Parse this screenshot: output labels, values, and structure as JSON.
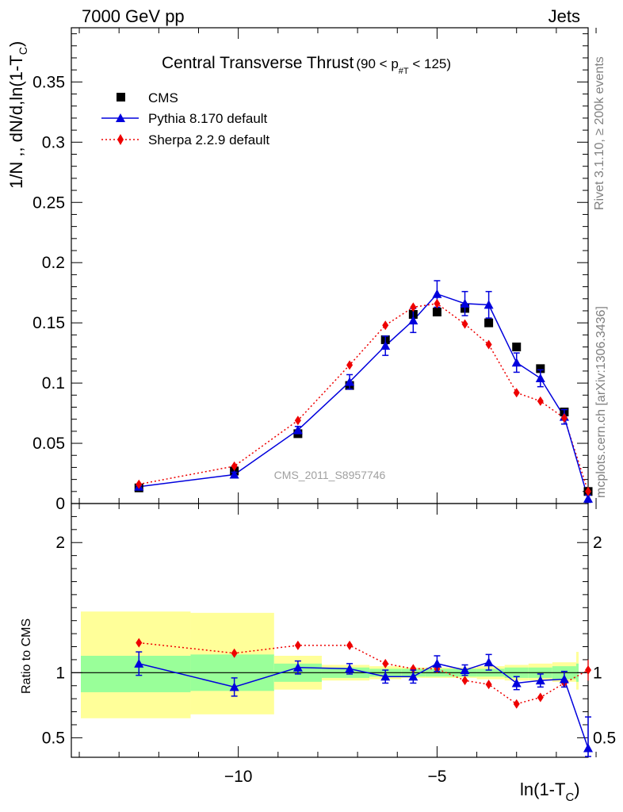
{
  "header": {
    "left": "7000 GeV pp",
    "right": "Jets"
  },
  "side_labels": {
    "top": "Rivet 3.1.10, ≥ 200k events",
    "bottom": "mcplots.cern.ch [arXiv:1306.3436]"
  },
  "watermark": "CMS_2011_S8957746",
  "chart_data": [
    {
      "type": "scatter",
      "title": "Central Transverse Thrust",
      "title_cut": "(90 < p",
      "title_cut_sub": "#T",
      "title_cut_end": " < 125)",
      "xlabel": "ln(1-T",
      "xlabel_sub": "C",
      "xlabel_end": ")",
      "ylabel": "1/N ,, dN/d,ln(1-T",
      "ylabel_sub": "C",
      "ylabel_end": ")",
      "xlim": [
        -14.2,
        -1.2
      ],
      "ylim": [
        0,
        0.395
      ],
      "xticks": [
        -10,
        -5
      ],
      "xtick_labels": [
        "−10",
        "−5"
      ],
      "yticks": [
        0,
        0.05,
        0.1,
        0.15,
        0.2,
        0.25,
        0.3,
        0.35
      ],
      "ytick_labels": [
        "0",
        "0.05",
        "0.1",
        "0.15",
        "0.2",
        "0.25",
        "0.3",
        "0.35"
      ],
      "legend_position": "top-left",
      "series": [
        {
          "name": "CMS",
          "color": "#000000",
          "marker": "square",
          "x": [
            -12.5,
            -10.1,
            -8.5,
            -7.2,
            -6.3,
            -5.6,
            -5.0,
            -4.3,
            -3.7,
            -3.0,
            -2.4,
            -1.8,
            -1.2
          ],
          "y": [
            0.013,
            0.027,
            0.058,
            0.098,
            0.136,
            0.157,
            0.159,
            0.162,
            0.15,
            0.13,
            0.112,
            0.076,
            0.01
          ]
        },
        {
          "name": "Pythia 8.170 default",
          "color": "#0000dd",
          "marker": "triangle",
          "line": "solid",
          "x": [
            -12.5,
            -10.1,
            -8.5,
            -7.2,
            -6.3,
            -5.6,
            -5.0,
            -4.3,
            -3.7,
            -3.0,
            -2.4,
            -1.8,
            -1.2
          ],
          "y": [
            0.014,
            0.024,
            0.061,
            0.101,
            0.131,
            0.152,
            0.174,
            0.166,
            0.165,
            0.117,
            0.104,
            0.072,
            0.004
          ],
          "err": [
            0.001,
            0.002,
            0.003,
            0.006,
            0.008,
            0.01,
            0.011,
            0.01,
            0.011,
            0.008,
            0.007,
            0.006,
            0.003
          ]
        },
        {
          "name": "Sherpa 2.2.9 default",
          "color": "#ee0000",
          "marker": "diamond",
          "line": "dotted",
          "x": [
            -12.5,
            -10.1,
            -8.5,
            -7.2,
            -6.3,
            -5.6,
            -5.0,
            -4.3,
            -3.7,
            -3.0,
            -2.4,
            -1.8,
            -1.2
          ],
          "y": [
            0.016,
            0.031,
            0.069,
            0.115,
            0.148,
            0.163,
            0.166,
            0.149,
            0.132,
            0.092,
            0.085,
            0.071,
            0.01
          ]
        }
      ]
    },
    {
      "type": "line",
      "ylabel": "Ratio to CMS",
      "xlim": [
        -14.2,
        -1.2
      ],
      "ylim": [
        0.35,
        2.3
      ],
      "yticks": [
        0.5,
        1,
        2
      ],
      "ytick_labels": [
        "0.5",
        "1",
        "2"
      ],
      "bands": [
        {
          "x0": -14.2,
          "x1": -11.2,
          "stat": [
            0.85,
            1.13
          ],
          "total": [
            0.65,
            1.47
          ]
        },
        {
          "x0": -11.2,
          "x1": -9.1,
          "stat": [
            0.86,
            1.14
          ],
          "total": [
            0.68,
            1.46
          ]
        },
        {
          "x0": -9.1,
          "x0b": -9.1,
          "x1": -7.9,
          "stat": [
            0.93,
            1.07
          ],
          "total": [
            0.87,
            1.13
          ]
        },
        {
          "x0": -7.9,
          "x1": -6.7,
          "stat": [
            0.96,
            1.04
          ],
          "total": [
            0.94,
            1.06
          ]
        },
        {
          "x0": -6.7,
          "x1": -5.9,
          "stat": [
            0.97,
            1.03
          ],
          "total": [
            0.95,
            1.05
          ]
        },
        {
          "x0": -5.9,
          "x1": -5.3,
          "stat": [
            0.97,
            1.03
          ],
          "total": [
            0.96,
            1.04
          ]
        },
        {
          "x0": -5.3,
          "x1": -4.6,
          "stat": [
            0.97,
            1.03
          ],
          "total": [
            0.96,
            1.04
          ]
        },
        {
          "x0": -4.6,
          "x1": -4.0,
          "stat": [
            0.97,
            1.03
          ],
          "total": [
            0.96,
            1.04
          ]
        },
        {
          "x0": -4.0,
          "x1": -3.3,
          "stat": [
            0.97,
            1.03
          ],
          "total": [
            0.95,
            1.05
          ]
        },
        {
          "x0": -3.3,
          "x1": -2.7,
          "stat": [
            0.96,
            1.04
          ],
          "total": [
            0.94,
            1.06
          ]
        },
        {
          "x0": -2.7,
          "x1": -2.1,
          "stat": [
            0.96,
            1.04
          ],
          "total": [
            0.94,
            1.07
          ]
        },
        {
          "x0": -2.1,
          "x1": -1.5,
          "stat": [
            0.95,
            1.05
          ],
          "total": [
            0.93,
            1.08
          ]
        },
        {
          "x0": -1.5,
          "x1": -0.9,
          "stat": [
            0.93,
            1.07
          ],
          "total": [
            0.87,
            1.16
          ]
        }
      ],
      "series": [
        {
          "name": "Pythia 8.170 default",
          "color": "#0000dd",
          "x": [
            -12.5,
            -10.1,
            -8.5,
            -7.2,
            -6.3,
            -5.6,
            -5.0,
            -4.3,
            -3.7,
            -3.0,
            -2.4,
            -1.8,
            -1.2
          ],
          "y": [
            1.07,
            0.89,
            1.04,
            1.03,
            0.97,
            0.97,
            1.07,
            1.02,
            1.08,
            0.92,
            0.94,
            0.95,
            0.42
          ],
          "err": [
            0.09,
            0.07,
            0.05,
            0.04,
            0.05,
            0.05,
            0.06,
            0.04,
            0.06,
            0.05,
            0.05,
            0.06,
            0.24
          ]
        },
        {
          "name": "Sherpa 2.2.9 default",
          "color": "#ee0000",
          "x": [
            -12.5,
            -10.1,
            -8.5,
            -7.2,
            -6.3,
            -5.6,
            -5.0,
            -4.3,
            -3.7,
            -3.0,
            -2.4,
            -1.8,
            -1.2
          ],
          "y": [
            1.23,
            1.15,
            1.21,
            1.21,
            1.07,
            1.03,
            1.03,
            0.94,
            0.91,
            0.76,
            0.81,
            0.92,
            1.02
          ],
          "err": [
            0.03,
            0.02,
            0.02,
            0.02,
            0.02,
            0.02,
            0.02,
            0.02,
            0.02,
            0.02,
            0.02,
            0.02,
            0.08
          ]
        }
      ]
    }
  ]
}
